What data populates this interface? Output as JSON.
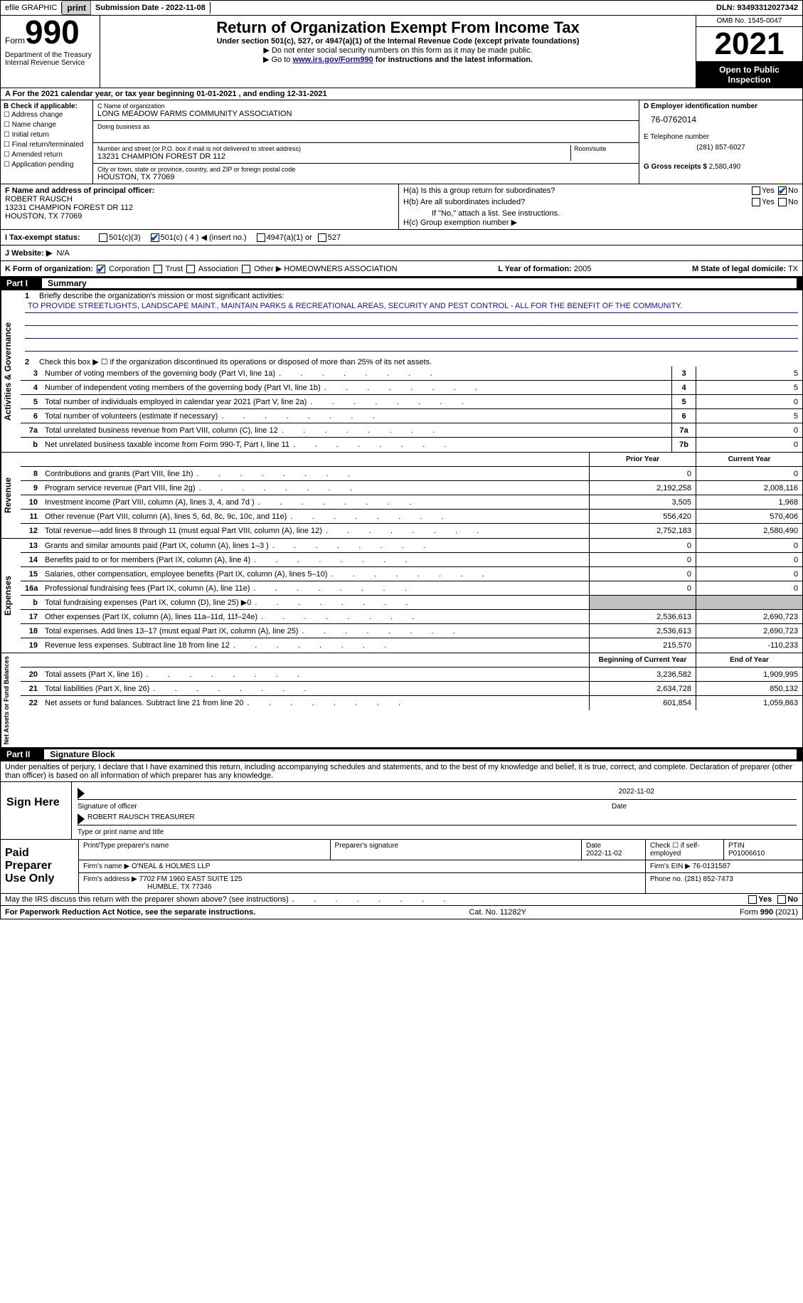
{
  "topbar": {
    "efile_label": "efile GRAPHIC",
    "print_btn": "print",
    "submission_label": "Submission Date - 2022-11-08",
    "dln_label": "DLN: 93493312027342"
  },
  "header": {
    "form_word": "Form",
    "form_num": "990",
    "dept": "Department of the Treasury\nInternal Revenue Service",
    "title": "Return of Organization Exempt From Income Tax",
    "subtitle": "Under section 501(c), 527, or 4947(a)(1) of the Internal Revenue Code (except private foundations)",
    "note1": "Do not enter social security numbers on this form as it may be made public.",
    "note2_pre": "Go to ",
    "note2_link": "www.irs.gov/Form990",
    "note2_post": " for instructions and the latest information.",
    "omb": "OMB No. 1545-0047",
    "year": "2021",
    "open_public": "Open to Public Inspection"
  },
  "period": {
    "line": "A For the 2021 calendar year, or tax year beginning 01-01-2021   , and ending 12-31-2021"
  },
  "section_b": {
    "label": "B Check if applicable:",
    "opts": [
      "Address change",
      "Name change",
      "Initial return",
      "Final return/terminated",
      "Amended return",
      "Application pending"
    ]
  },
  "section_c": {
    "name_lbl": "C Name of organization",
    "name": "LONG MEADOW FARMS COMMUNITY ASSOCIATION",
    "dba_lbl": "Doing business as",
    "addr_lbl": "Number and street (or P.O. box if mail is not delivered to street address)",
    "room_lbl": "Room/suite",
    "addr": "13231 CHAMPION FOREST DR 112",
    "city_lbl": "City or town, state or province, country, and ZIP or foreign postal code",
    "city": "HOUSTON, TX  77069"
  },
  "section_d": {
    "ein_lbl": "D Employer identification number",
    "ein": "76-0762014",
    "phone_lbl": "E Telephone number",
    "phone": "(281) 857-6027",
    "gross_lbl": "G Gross receipts $",
    "gross": "2,580,490"
  },
  "section_f": {
    "lbl": "F Name and address of principal officer:",
    "name": "ROBERT RAUSCH",
    "addr": "13231 CHAMPION FOREST DR 112",
    "city": "HOUSTON, TX  77069"
  },
  "section_h": {
    "ha": "H(a)  Is this a group return for subordinates?",
    "hb": "H(b)  Are all subordinates included?",
    "hb_note": "If \"No,\" attach a list. See instructions.",
    "hc": "H(c)  Group exemption number ▶",
    "yes": "Yes",
    "no": "No"
  },
  "status": {
    "lbl": "I   Tax-exempt status:",
    "opt1": "501(c)(3)",
    "opt2": "501(c) ( 4 ) ◀ (insert no.)",
    "opt3": "4947(a)(1) or",
    "opt4": "527"
  },
  "website": {
    "lbl": "J   Website: ▶",
    "val": "N/A"
  },
  "korg": {
    "lbl": "K Form of organization:",
    "opts": [
      "Corporation",
      "Trust",
      "Association",
      "Other ▶"
    ],
    "other_val": "HOMEOWNERS ASSOCIATION",
    "year_lbl": "L Year of formation:",
    "year": "2005",
    "state_lbl": "M State of legal domicile:",
    "state": "TX"
  },
  "part1": {
    "header_num": "Part I",
    "header_title": "Summary",
    "q1_lbl": "Briefly describe the organization's mission or most significant activities:",
    "q1_text": "TO PROVIDE STREETLIGHTS, LANDSCAPE MAINT., MAINTAIN PARKS & RECREATIONAL AREAS, SECURITY AND PEST CONTROL - ALL FOR THE BENEFIT OF THE COMMUNITY.",
    "q2": "Check this box ▶ ☐ if the organization discontinued its operations or disposed of more than 25% of its net assets.",
    "sideA": "Activities & Governance",
    "sideR": "Revenue",
    "sideE": "Expenses",
    "sideN": "Net Assets or Fund Balances",
    "lines_gov": [
      {
        "n": "3",
        "d": "Number of voting members of the governing body (Part VI, line 1a)",
        "box": "3",
        "v": "5"
      },
      {
        "n": "4",
        "d": "Number of independent voting members of the governing body (Part VI, line 1b)",
        "box": "4",
        "v": "5"
      },
      {
        "n": "5",
        "d": "Total number of individuals employed in calendar year 2021 (Part V, line 2a)",
        "box": "5",
        "v": "0"
      },
      {
        "n": "6",
        "d": "Total number of volunteers (estimate if necessary)",
        "box": "6",
        "v": "5"
      },
      {
        "n": "7a",
        "d": "Total unrelated business revenue from Part VIII, column (C), line 12",
        "box": "7a",
        "v": "0"
      },
      {
        "n": "b",
        "d": "Net unrelated business taxable income from Form 990-T, Part I, line 11",
        "box": "7b",
        "v": "0"
      }
    ],
    "col_prior": "Prior Year",
    "col_current": "Current Year",
    "lines_rev": [
      {
        "n": "8",
        "d": "Contributions and grants (Part VIII, line 1h)",
        "p": "0",
        "c": "0"
      },
      {
        "n": "9",
        "d": "Program service revenue (Part VIII, line 2g)",
        "p": "2,192,258",
        "c": "2,008,116"
      },
      {
        "n": "10",
        "d": "Investment income (Part VIII, column (A), lines 3, 4, and 7d )",
        "p": "3,505",
        "c": "1,968"
      },
      {
        "n": "11",
        "d": "Other revenue (Part VIII, column (A), lines 5, 6d, 8c, 9c, 10c, and 11e)",
        "p": "556,420",
        "c": "570,406"
      },
      {
        "n": "12",
        "d": "Total revenue—add lines 8 through 11 (must equal Part VIII, column (A), line 12)",
        "p": "2,752,183",
        "c": "2,580,490"
      }
    ],
    "lines_exp": [
      {
        "n": "13",
        "d": "Grants and similar amounts paid (Part IX, column (A), lines 1–3 )",
        "p": "0",
        "c": "0"
      },
      {
        "n": "14",
        "d": "Benefits paid to or for members (Part IX, column (A), line 4)",
        "p": "0",
        "c": "0"
      },
      {
        "n": "15",
        "d": "Salaries, other compensation, employee benefits (Part IX, column (A), lines 5–10)",
        "p": "0",
        "c": "0"
      },
      {
        "n": "16a",
        "d": "Professional fundraising fees (Part IX, column (A), line 11e)",
        "p": "0",
        "c": "0"
      },
      {
        "n": "b",
        "d": "Total fundraising expenses (Part IX, column (D), line 25) ▶0",
        "p": "grey",
        "c": "grey"
      },
      {
        "n": "17",
        "d": "Other expenses (Part IX, column (A), lines 11a–11d, 11f–24e)",
        "p": "2,536,613",
        "c": "2,690,723"
      },
      {
        "n": "18",
        "d": "Total expenses. Add lines 13–17 (must equal Part IX, column (A), line 25)",
        "p": "2,536,613",
        "c": "2,690,723"
      },
      {
        "n": "19",
        "d": "Revenue less expenses. Subtract line 18 from line 12",
        "p": "215,570",
        "c": "-110,233"
      }
    ],
    "col_boy": "Beginning of Current Year",
    "col_eoy": "End of Year",
    "lines_net": [
      {
        "n": "20",
        "d": "Total assets (Part X, line 16)",
        "p": "3,236,582",
        "c": "1,909,995"
      },
      {
        "n": "21",
        "d": "Total liabilities (Part X, line 26)",
        "p": "2,634,728",
        "c": "850,132"
      },
      {
        "n": "22",
        "d": "Net assets or fund balances. Subtract line 21 from line 20",
        "p": "601,854",
        "c": "1,059,863"
      }
    ]
  },
  "part2": {
    "header_num": "Part II",
    "header_title": "Signature Block",
    "decl": "Under penalties of perjury, I declare that I have examined this return, including accompanying schedules and statements, and to the best of my knowledge and belief, it is true, correct, and complete. Declaration of preparer (other than officer) is based on all information of which preparer has any knowledge.",
    "sign_here": "Sign Here",
    "sig_officer_lbl": "Signature of officer",
    "sig_date": "2022-11-02",
    "date_lbl": "Date",
    "officer_name": "ROBERT RAUSCH  TREASURER",
    "officer_lbl": "Type or print name and title",
    "paid_lbl": "Paid Preparer Use Only",
    "prep_name_lbl": "Print/Type preparer's name",
    "prep_sig_lbl": "Preparer's signature",
    "prep_date_lbl": "Date",
    "prep_date": "2022-11-02",
    "self_emp_lbl": "Check ☐ if self-employed",
    "ptin_lbl": "PTIN",
    "ptin": "P01006610",
    "firm_name_lbl": "Firm's name      ▶",
    "firm_name": "O'NEAL & HOLMES LLP",
    "firm_ein_lbl": "Firm's EIN ▶",
    "firm_ein": "76-0131587",
    "firm_addr_lbl": "Firm's address ▶",
    "firm_addr": "7702 FM 1960 EAST SUITE 125",
    "firm_city": "HUMBLE, TX  77346",
    "firm_phone_lbl": "Phone no.",
    "firm_phone": "(281) 852-7473",
    "discuss": "May the IRS discuss this return with the preparer shown above? (see instructions)"
  },
  "footer": {
    "paperwork": "For Paperwork Reduction Act Notice, see the separate instructions.",
    "cat": "Cat. No. 11282Y",
    "form": "Form 990 (2021)"
  },
  "colors": {
    "link": "#1a0dab",
    "check": "#0047ab",
    "grey": "#c0c0c0"
  }
}
